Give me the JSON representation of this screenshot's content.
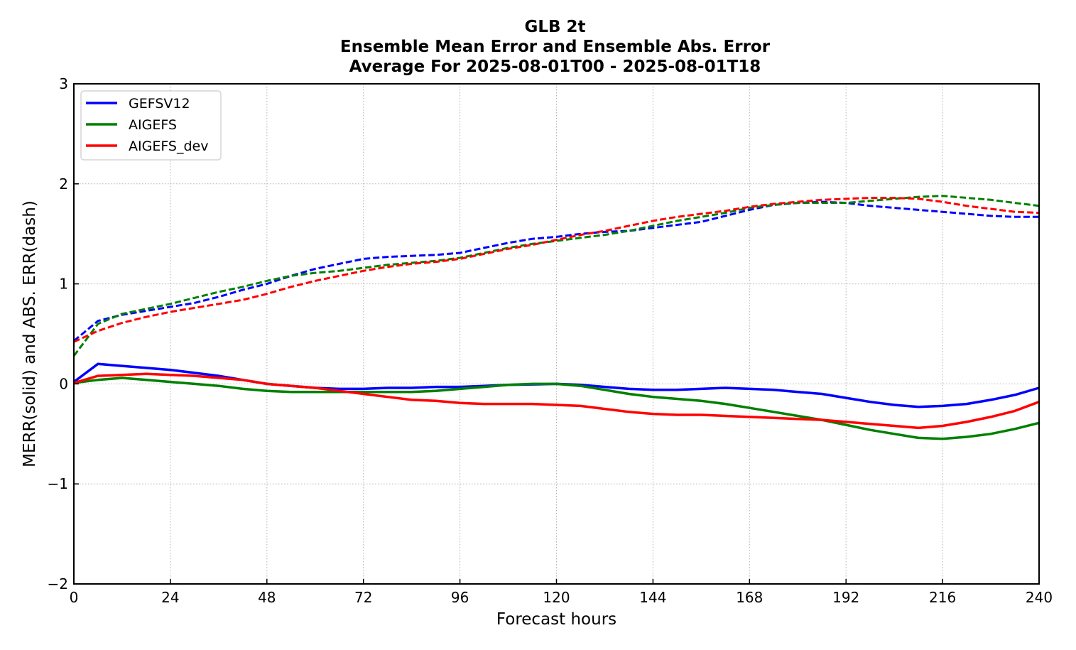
{
  "chart_data": {
    "type": "line",
    "title_lines": [
      "GLB 2t",
      "Ensemble Mean Error and Ensemble Abs. Error",
      "Average For 2025-08-01T00 - 2025-08-01T18"
    ],
    "xlabel": "Forecast hours",
    "ylabel": "MERR(solid) and ABS. ERR(dash)",
    "xlim": [
      0,
      240
    ],
    "ylim": [
      -2,
      3
    ],
    "xticks": [
      0,
      24,
      48,
      72,
      96,
      120,
      144,
      168,
      192,
      216,
      240
    ],
    "yticks": [
      -2,
      -1,
      0,
      1,
      2,
      3
    ],
    "ytick_labels": [
      "−2",
      "−1",
      "0",
      "1",
      "2",
      "3"
    ],
    "grid": true,
    "legend_position": "upper-left",
    "x": [
      0,
      6,
      12,
      18,
      24,
      30,
      36,
      42,
      48,
      54,
      60,
      66,
      72,
      78,
      84,
      90,
      96,
      102,
      108,
      114,
      120,
      126,
      132,
      138,
      144,
      150,
      156,
      162,
      168,
      174,
      180,
      186,
      192,
      198,
      204,
      210,
      216,
      222,
      228,
      234,
      240
    ],
    "series": [
      {
        "name": "GEFSV12",
        "color": "#0000ff",
        "merr": [
          0.02,
          0.2,
          0.18,
          0.16,
          0.14,
          0.11,
          0.08,
          0.04,
          0.0,
          -0.02,
          -0.04,
          -0.05,
          -0.05,
          -0.04,
          -0.04,
          -0.03,
          -0.03,
          -0.02,
          -0.01,
          -0.005,
          0.0,
          -0.01,
          -0.03,
          -0.05,
          -0.06,
          -0.06,
          -0.05,
          -0.04,
          -0.05,
          -0.06,
          -0.08,
          -0.1,
          -0.14,
          -0.18,
          -0.21,
          -0.23,
          -0.22,
          -0.2,
          -0.16,
          -0.11,
          -0.04
        ],
        "abs_err": [
          0.43,
          0.63,
          0.69,
          0.73,
          0.77,
          0.81,
          0.87,
          0.94,
          1.0,
          1.08,
          1.15,
          1.2,
          1.25,
          1.27,
          1.28,
          1.29,
          1.31,
          1.36,
          1.41,
          1.45,
          1.47,
          1.5,
          1.52,
          1.53,
          1.56,
          1.59,
          1.62,
          1.68,
          1.74,
          1.79,
          1.81,
          1.82,
          1.81,
          1.78,
          1.76,
          1.74,
          1.72,
          1.7,
          1.68,
          1.67,
          1.67
        ]
      },
      {
        "name": "AIGEFS",
        "color": "#008000",
        "merr": [
          0.01,
          0.04,
          0.06,
          0.04,
          0.02,
          0.0,
          -0.02,
          -0.05,
          -0.07,
          -0.08,
          -0.08,
          -0.08,
          -0.08,
          -0.08,
          -0.08,
          -0.07,
          -0.05,
          -0.03,
          -0.01,
          0.0,
          0.0,
          -0.02,
          -0.06,
          -0.1,
          -0.13,
          -0.15,
          -0.17,
          -0.2,
          -0.24,
          -0.28,
          -0.32,
          -0.36,
          -0.41,
          -0.46,
          -0.5,
          -0.54,
          -0.55,
          -0.53,
          -0.5,
          -0.45,
          -0.39
        ],
        "abs_err": [
          0.28,
          0.6,
          0.7,
          0.75,
          0.8,
          0.86,
          0.92,
          0.97,
          1.03,
          1.08,
          1.11,
          1.13,
          1.16,
          1.19,
          1.21,
          1.23,
          1.26,
          1.31,
          1.36,
          1.4,
          1.43,
          1.46,
          1.49,
          1.53,
          1.58,
          1.63,
          1.67,
          1.71,
          1.76,
          1.79,
          1.81,
          1.81,
          1.81,
          1.83,
          1.85,
          1.87,
          1.88,
          1.86,
          1.84,
          1.81,
          1.78
        ]
      },
      {
        "name": "AIGEFS_dev",
        "color": "#ff0000",
        "merr": [
          0.01,
          0.08,
          0.09,
          0.1,
          0.09,
          0.08,
          0.06,
          0.04,
          0.0,
          -0.02,
          -0.04,
          -0.07,
          -0.1,
          -0.13,
          -0.16,
          -0.17,
          -0.19,
          -0.2,
          -0.2,
          -0.2,
          -0.21,
          -0.22,
          -0.25,
          -0.28,
          -0.3,
          -0.31,
          -0.31,
          -0.32,
          -0.33,
          -0.34,
          -0.35,
          -0.36,
          -0.38,
          -0.4,
          -0.42,
          -0.44,
          -0.42,
          -0.38,
          -0.33,
          -0.27,
          -0.18
        ],
        "abs_err": [
          0.42,
          0.53,
          0.61,
          0.67,
          0.72,
          0.76,
          0.8,
          0.84,
          0.9,
          0.97,
          1.03,
          1.08,
          1.13,
          1.17,
          1.2,
          1.22,
          1.25,
          1.3,
          1.35,
          1.39,
          1.44,
          1.49,
          1.53,
          1.58,
          1.63,
          1.67,
          1.7,
          1.73,
          1.77,
          1.8,
          1.82,
          1.84,
          1.85,
          1.86,
          1.86,
          1.85,
          1.82,
          1.78,
          1.75,
          1.72,
          1.71
        ]
      }
    ]
  }
}
